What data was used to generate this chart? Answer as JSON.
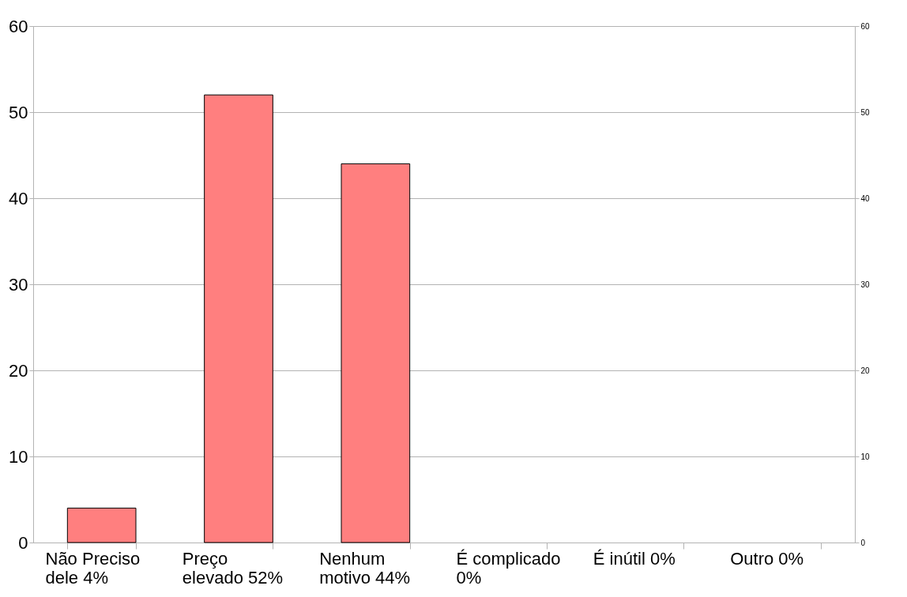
{
  "chart_data": {
    "type": "bar",
    "categories": [
      "Não Preciso dele 4%",
      "Preço elevado 52%",
      "Nenhum motivo 44%",
      "É complicado 0%",
      "É inútil 0%",
      "Outro 0%"
    ],
    "values": [
      4,
      52,
      44,
      0,
      0,
      0
    ],
    "color": "#ff7f7f",
    "ylim": [
      0,
      60
    ],
    "yticks": [
      0,
      10,
      20,
      30,
      40,
      50,
      60
    ],
    "y2lim": [
      0,
      60
    ],
    "y2ticks": [
      0,
      10,
      20,
      30,
      40,
      50,
      60
    ],
    "grid": "y"
  }
}
